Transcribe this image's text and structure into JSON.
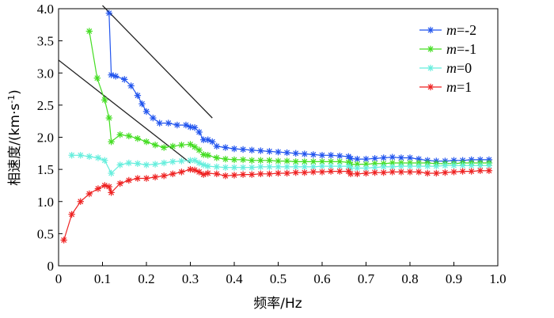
{
  "chart_data": {
    "type": "line",
    "xlabel": "频率/Hz",
    "ylabel": "相速度/(km·s⁻¹)",
    "ylabel_parts": {
      "main": "相速度/(km·s",
      "sup": "-1",
      "end": ")"
    },
    "xlim": [
      0,
      1.0
    ],
    "ylim": [
      0,
      4.0
    ],
    "x_ticks": [
      0,
      0.1,
      0.2,
      0.3,
      0.4,
      0.5,
      0.6,
      0.7,
      0.8,
      0.9,
      1.0
    ],
    "x_tick_labels": [
      "0",
      "0.1",
      "0.2",
      "0.3",
      "0.4",
      "0.5",
      "0.6",
      "0.7",
      "0.8",
      "0.9",
      "1.0"
    ],
    "y_ticks": [
      0,
      0.5,
      1.0,
      1.5,
      2.0,
      2.5,
      3.0,
      3.5,
      4.0
    ],
    "y_tick_labels": [
      "0",
      "0.5",
      "1.0",
      "1.5",
      "2.0",
      "2.5",
      "3.0",
      "3.5",
      "4.0"
    ],
    "grid": false,
    "legend_position": "top-right",
    "series": [
      {
        "name": "m=-2",
        "legend_var": "m",
        "legend_value": "=-2",
        "color": "#2255ee",
        "x": [
          0.115,
          0.12,
          0.13,
          0.15,
          0.165,
          0.18,
          0.19,
          0.2,
          0.215,
          0.23,
          0.25,
          0.27,
          0.29,
          0.3,
          0.31,
          0.32,
          0.33,
          0.34,
          0.35,
          0.36,
          0.38,
          0.4,
          0.42,
          0.44,
          0.46,
          0.48,
          0.5,
          0.52,
          0.54,
          0.56,
          0.58,
          0.6,
          0.62,
          0.64,
          0.66,
          0.665,
          0.68,
          0.7,
          0.72,
          0.74,
          0.76,
          0.78,
          0.8,
          0.82,
          0.84,
          0.86,
          0.88,
          0.9,
          0.92,
          0.94,
          0.96,
          0.98
        ],
        "y": [
          3.93,
          2.97,
          2.95,
          2.9,
          2.8,
          2.65,
          2.52,
          2.4,
          2.3,
          2.22,
          2.22,
          2.19,
          2.19,
          2.16,
          2.15,
          2.08,
          1.96,
          1.96,
          1.93,
          1.86,
          1.84,
          1.82,
          1.81,
          1.8,
          1.79,
          1.78,
          1.77,
          1.76,
          1.75,
          1.74,
          1.73,
          1.72,
          1.72,
          1.71,
          1.7,
          1.67,
          1.66,
          1.66,
          1.67,
          1.68,
          1.69,
          1.68,
          1.68,
          1.66,
          1.64,
          1.63,
          1.63,
          1.64,
          1.64,
          1.65,
          1.65,
          1.65
        ]
      },
      {
        "name": "m=-1",
        "legend_var": "m",
        "legend_value": "=-1",
        "color": "#44dd22",
        "x": [
          0.07,
          0.088,
          0.105,
          0.115,
          0.12,
          0.14,
          0.16,
          0.18,
          0.2,
          0.22,
          0.24,
          0.26,
          0.28,
          0.3,
          0.31,
          0.32,
          0.33,
          0.34,
          0.36,
          0.38,
          0.4,
          0.42,
          0.44,
          0.46,
          0.48,
          0.5,
          0.52,
          0.54,
          0.56,
          0.58,
          0.6,
          0.62,
          0.64,
          0.66,
          0.665,
          0.68,
          0.7,
          0.72,
          0.74,
          0.76,
          0.78,
          0.8,
          0.82,
          0.84,
          0.86,
          0.88,
          0.9,
          0.92,
          0.94,
          0.96,
          0.98
        ],
        "y": [
          3.65,
          2.92,
          2.58,
          2.3,
          1.93,
          2.04,
          2.02,
          1.98,
          1.93,
          1.88,
          1.84,
          1.86,
          1.88,
          1.89,
          1.85,
          1.8,
          1.73,
          1.72,
          1.68,
          1.66,
          1.65,
          1.65,
          1.64,
          1.64,
          1.64,
          1.63,
          1.63,
          1.62,
          1.62,
          1.62,
          1.62,
          1.62,
          1.62,
          1.61,
          1.58,
          1.58,
          1.58,
          1.59,
          1.59,
          1.6,
          1.6,
          1.6,
          1.6,
          1.6,
          1.59,
          1.59,
          1.59,
          1.6,
          1.6,
          1.6,
          1.6
        ]
      },
      {
        "name": "m=0",
        "legend_var": "m",
        "legend_value": "=0",
        "color": "#66eedd",
        "x": [
          0.03,
          0.05,
          0.07,
          0.09,
          0.105,
          0.12,
          0.14,
          0.16,
          0.18,
          0.2,
          0.22,
          0.24,
          0.26,
          0.28,
          0.3,
          0.31,
          0.32,
          0.33,
          0.34,
          0.36,
          0.38,
          0.4,
          0.42,
          0.44,
          0.46,
          0.48,
          0.5,
          0.52,
          0.54,
          0.56,
          0.58,
          0.6,
          0.62,
          0.64,
          0.66,
          0.665,
          0.68,
          0.7,
          0.72,
          0.74,
          0.76,
          0.78,
          0.8,
          0.82,
          0.84,
          0.86,
          0.88,
          0.9,
          0.92,
          0.94,
          0.96,
          0.98
        ],
        "y": [
          1.72,
          1.72,
          1.7,
          1.68,
          1.64,
          1.44,
          1.57,
          1.6,
          1.59,
          1.57,
          1.58,
          1.6,
          1.62,
          1.63,
          1.64,
          1.64,
          1.6,
          1.57,
          1.55,
          1.54,
          1.53,
          1.53,
          1.53,
          1.53,
          1.54,
          1.54,
          1.54,
          1.54,
          1.54,
          1.54,
          1.54,
          1.55,
          1.55,
          1.55,
          1.55,
          1.52,
          1.52,
          1.52,
          1.53,
          1.54,
          1.54,
          1.55,
          1.55,
          1.55,
          1.55,
          1.55,
          1.56,
          1.56,
          1.56,
          1.56,
          1.56,
          1.56
        ]
      },
      {
        "name": "m=1",
        "legend_var": "m",
        "legend_value": "=1",
        "color": "#ee2222",
        "x": [
          0.012,
          0.03,
          0.05,
          0.07,
          0.09,
          0.105,
          0.115,
          0.12,
          0.14,
          0.16,
          0.18,
          0.2,
          0.22,
          0.24,
          0.26,
          0.28,
          0.3,
          0.31,
          0.32,
          0.33,
          0.34,
          0.36,
          0.38,
          0.4,
          0.42,
          0.44,
          0.46,
          0.48,
          0.5,
          0.52,
          0.54,
          0.56,
          0.58,
          0.6,
          0.62,
          0.64,
          0.66,
          0.665,
          0.68,
          0.7,
          0.72,
          0.74,
          0.76,
          0.78,
          0.8,
          0.82,
          0.84,
          0.86,
          0.88,
          0.9,
          0.92,
          0.94,
          0.96,
          0.98
        ],
        "y": [
          0.4,
          0.8,
          1.0,
          1.12,
          1.2,
          1.25,
          1.23,
          1.14,
          1.28,
          1.33,
          1.36,
          1.36,
          1.38,
          1.4,
          1.43,
          1.46,
          1.5,
          1.49,
          1.46,
          1.42,
          1.44,
          1.43,
          1.4,
          1.41,
          1.42,
          1.42,
          1.43,
          1.43,
          1.44,
          1.44,
          1.45,
          1.45,
          1.46,
          1.46,
          1.47,
          1.47,
          1.47,
          1.43,
          1.43,
          1.44,
          1.45,
          1.45,
          1.46,
          1.46,
          1.46,
          1.46,
          1.44,
          1.44,
          1.45,
          1.46,
          1.47,
          1.47,
          1.48,
          1.48
        ]
      }
    ],
    "reference_lines": [
      {
        "name": "upper-reference-line",
        "x": [
          0.1,
          0.35
        ],
        "y": [
          4.05,
          2.3
        ]
      },
      {
        "name": "lower-reference-line",
        "x": [
          0.0,
          0.3
        ],
        "y": [
          3.2,
          1.6
        ]
      }
    ]
  }
}
